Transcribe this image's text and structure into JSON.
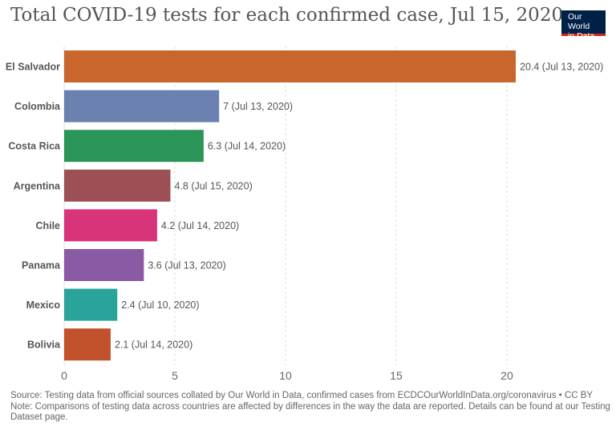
{
  "chart_data": {
    "type": "bar",
    "orientation": "horizontal",
    "title": "Total COVID-19 tests for each confirmed case, Jul 15, 2020",
    "categories": [
      "El Salvador",
      "Colombia",
      "Costa Rica",
      "Argentina",
      "Chile",
      "Panama",
      "Mexico",
      "Bolivia"
    ],
    "values": [
      20.4,
      7,
      6.3,
      4.8,
      4.2,
      3.6,
      2.4,
      2.1
    ],
    "value_labels": [
      "20.4 (Jul 13, 2020)",
      "7 (Jul 13, 2020)",
      "6.3 (Jul 14, 2020)",
      "4.8 (Jul 15, 2020)",
      "4.2 (Jul 14, 2020)",
      "3.6 (Jul 13, 2020)",
      "2.4 (Jul 10, 2020)",
      "2.1 (Jul 14, 2020)"
    ],
    "colors": [
      "#c8662c",
      "#6b81b0",
      "#2a9556",
      "#9c4f55",
      "#d8347a",
      "#8a5aa4",
      "#2aa39a",
      "#c2522b"
    ],
    "xlim": [
      0,
      20.4
    ],
    "xticks": [
      0,
      5,
      10,
      15,
      20
    ],
    "xlabel": "",
    "ylabel": "",
    "grid": "vertical dashed",
    "legend": "none"
  },
  "logo": {
    "line1": "Our World",
    "line2": "in Data"
  },
  "footer": {
    "source": "Source: Testing data from official sources collated by Our World in Data, confirmed cases from ECDCOurWorldInData.org/coronavirus • CC BY",
    "note": "Note: Comparisons of testing data across countries are affected by differences in the way the data are reported. Details can be found at our Testing Dataset page."
  }
}
